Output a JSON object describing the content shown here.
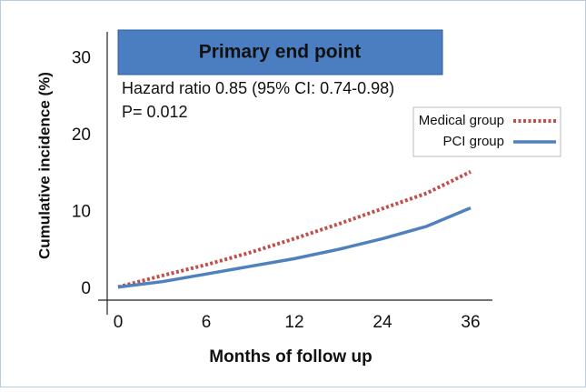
{
  "chart_data": {
    "type": "line",
    "title": "Primary end point",
    "annotations": [
      "Hazard ratio 0.85 (95% CI: 0.74-0.98)",
      "P= 0.012"
    ],
    "x_label": "Months of follow up",
    "y_label": "Cumulative incidence (%)",
    "x": [
      0,
      3,
      6,
      9,
      12,
      18,
      24,
      30,
      36
    ],
    "series": [
      {
        "name": "Medical group",
        "color": "#c0504d",
        "values": [
          0.3,
          1.8,
          3.2,
          4.8,
          6.6,
          8.5,
          10.5,
          12.5,
          15.3
        ]
      },
      {
        "name": "PCI group",
        "color": "#4f81bd",
        "values": [
          0.3,
          1.0,
          2.0,
          3.0,
          4.0,
          5.2,
          6.6,
          8.2,
          10.6
        ]
      }
    ],
    "xlim": [
      0,
      36
    ],
    "xticks": [
      0,
      6,
      12,
      24,
      36
    ],
    "ylim": [
      -1.4,
      33.5
    ],
    "yticks": [
      0,
      10,
      20,
      30
    ],
    "legend": "upper right"
  }
}
